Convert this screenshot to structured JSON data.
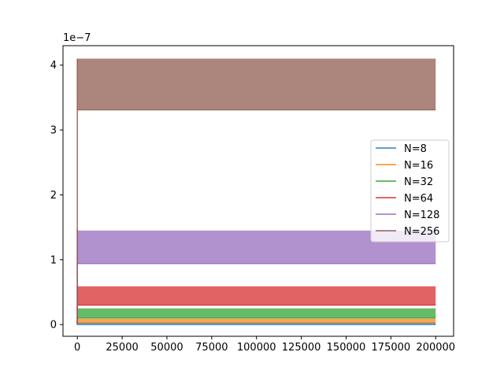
{
  "chart_data": {
    "type": "line",
    "title": "",
    "xlabel": "",
    "ylabel": "",
    "offset_text": "1e−7",
    "y_multiplier": 1e-07,
    "xlim": [
      -8000,
      210000
    ],
    "ylim": [
      -0.18,
      4.3
    ],
    "x_ticks": [
      0,
      25000,
      50000,
      75000,
      100000,
      125000,
      150000,
      175000,
      200000
    ],
    "x_tick_labels": [
      "0",
      "25000",
      "50000",
      "75000",
      "100000",
      "125000",
      "150000",
      "175000",
      "200000"
    ],
    "y_ticks": [
      0,
      1,
      2,
      3,
      4
    ],
    "y_tick_labels": [
      "0",
      "1",
      "2",
      "3",
      "4"
    ],
    "grid": false,
    "legend_placement": "center-right",
    "x_range": [
      0,
      200000
    ],
    "series": [
      {
        "name": "N=8",
        "color": "#1f77b4",
        "band": [
          0.0,
          0.03
        ],
        "peak": 0.05
      },
      {
        "name": "N=16",
        "color": "#ff7f0e",
        "band": [
          0.03,
          0.09
        ],
        "peak": 0.12
      },
      {
        "name": "N=32",
        "color": "#2ca02c",
        "band": [
          0.1,
          0.25
        ],
        "peak": 0.28
      },
      {
        "name": "N=64",
        "color": "#d62728",
        "band": [
          0.3,
          0.59
        ],
        "peak": 0.6
      },
      {
        "name": "N=128",
        "color": "#9467bd",
        "band": [
          0.94,
          1.45
        ],
        "peak": 1.47
      },
      {
        "name": "N=256",
        "color": "#8c564b",
        "band": [
          3.31,
          4.1
        ],
        "peak": 4.1
      }
    ]
  }
}
